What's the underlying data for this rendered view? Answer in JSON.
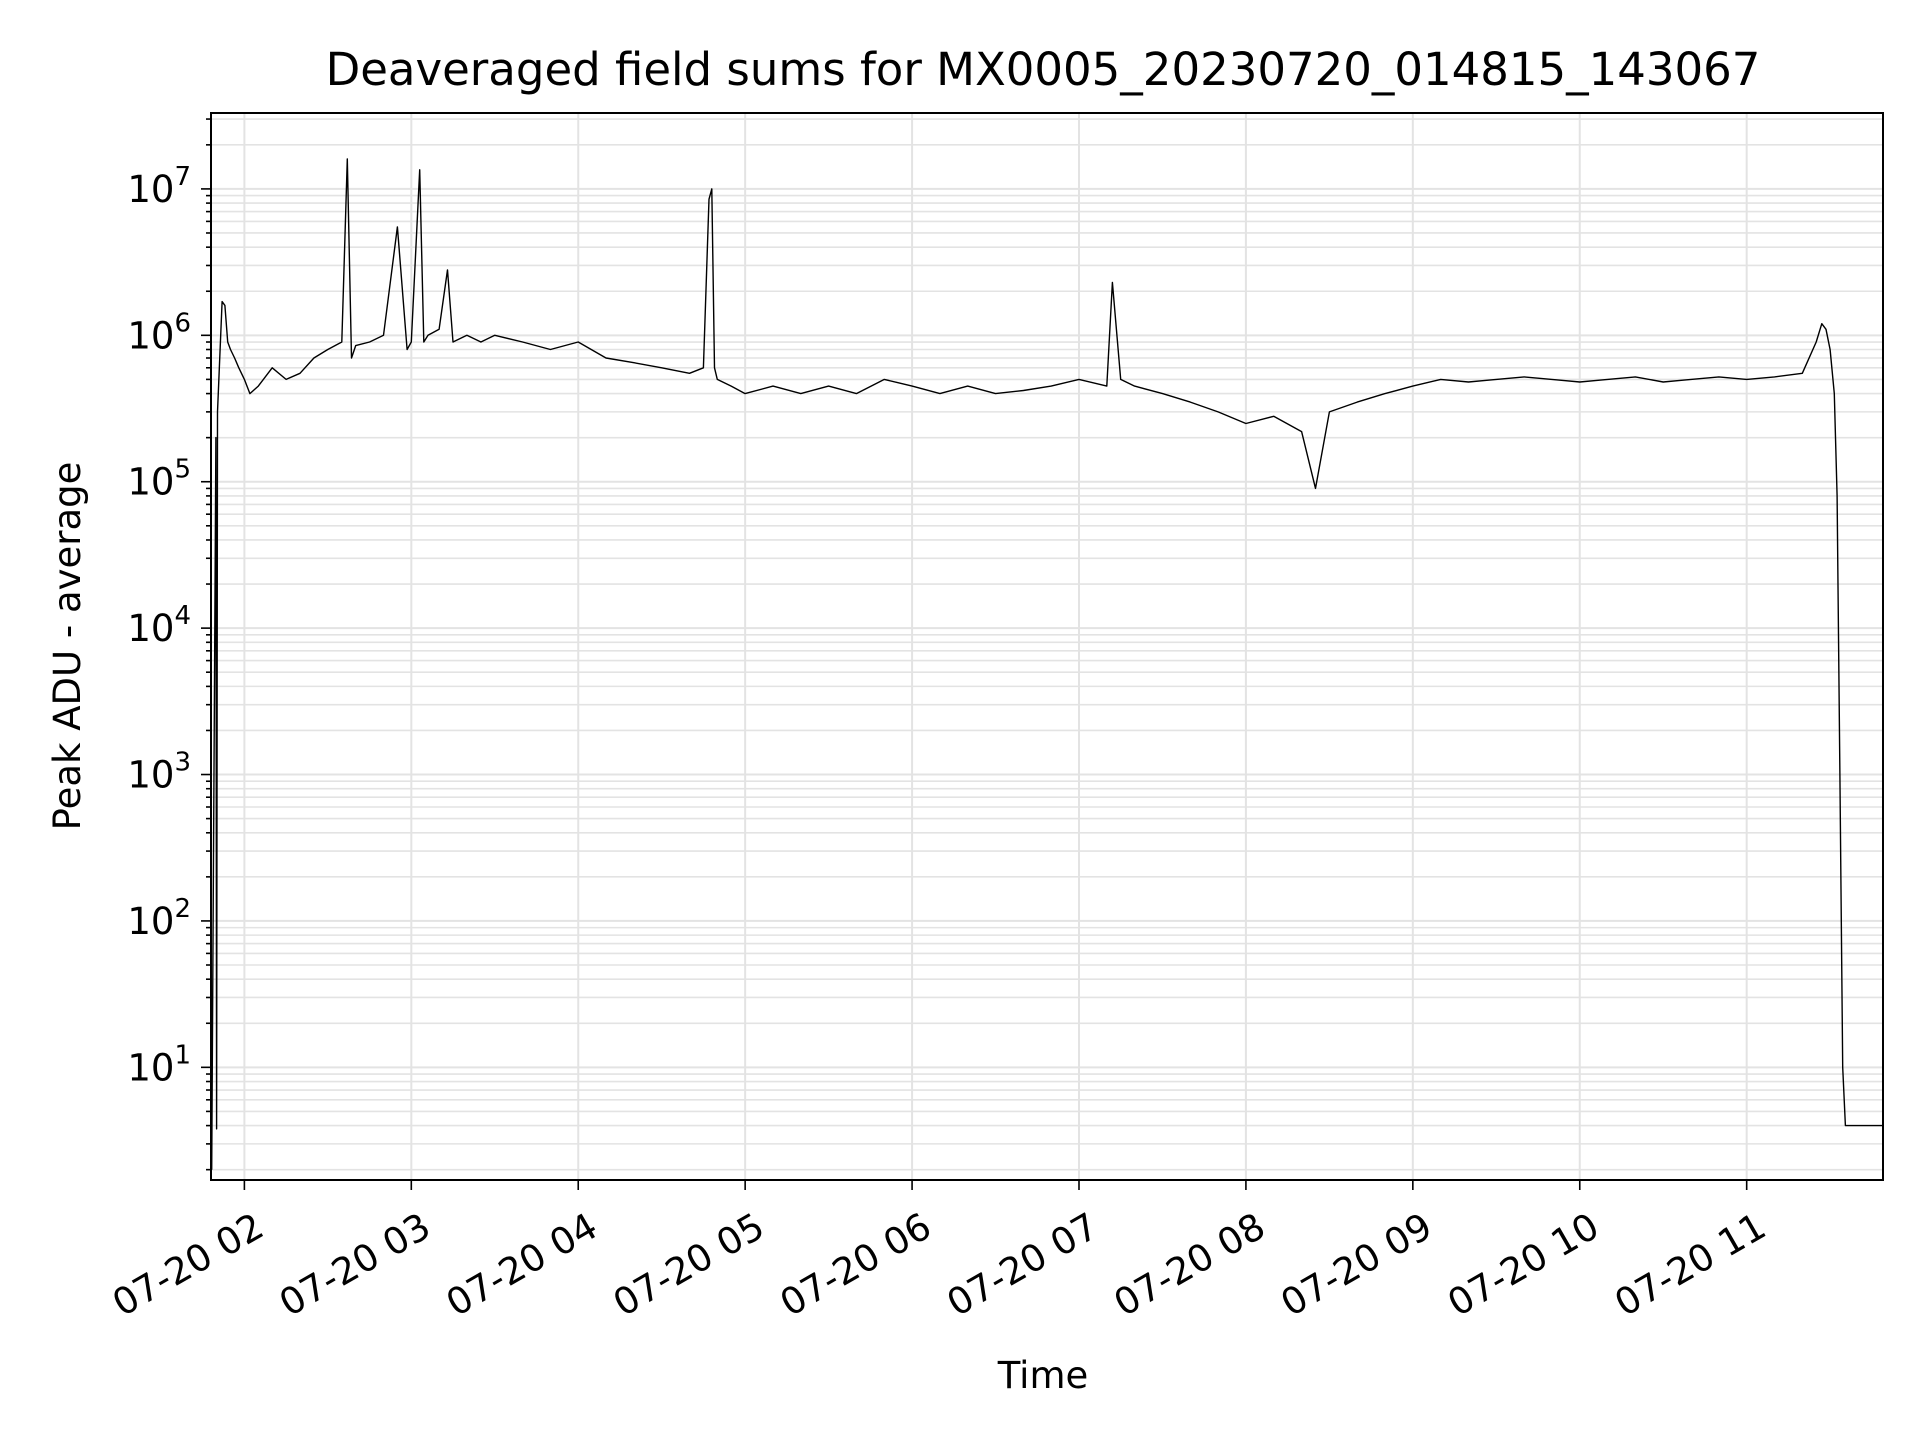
{
  "chart_data": {
    "type": "line",
    "title": "Deaveraged field sums for MX0005_20230720_014815_143067",
    "xlabel": "Time",
    "ylabel": "Peak ADU - average",
    "x_ticks": [
      "07-20 02",
      "07-20 03",
      "07-20 04",
      "07-20 05",
      "07-20 06",
      "07-20 07",
      "07-20 08",
      "07-20 09",
      "07-20 10",
      "07-20 11"
    ],
    "y_ticks": [
      {
        "base": "10",
        "exp": "1",
        "value": 10
      },
      {
        "base": "10",
        "exp": "2",
        "value": 100
      },
      {
        "base": "10",
        "exp": "3",
        "value": 1000
      },
      {
        "base": "10",
        "exp": "4",
        "value": 10000
      },
      {
        "base": "10",
        "exp": "5",
        "value": 100000
      },
      {
        "base": "10",
        "exp": "6",
        "value": 1000000
      },
      {
        "base": "10",
        "exp": "7",
        "value": 10000000
      }
    ],
    "yscale": "log",
    "xlim": [
      "2023-07-20 01:48",
      "2023-07-20 11:49"
    ],
    "ylim": [
      1.7,
      33000000
    ],
    "grid": true,
    "line_color": "#000000",
    "grid_color": "#e3e3e3",
    "series": [
      {
        "x": [
          "2023-07-20 01:48:15",
          "2023-07-20 01:49:45",
          "2023-07-20 01:50:00",
          "2023-07-20 01:50:20",
          "2023-07-20 01:52:00",
          "2023-07-20 01:53:00",
          "2023-07-20 01:54:00",
          "2023-07-20 01:55:00",
          "2023-07-20 01:56:30",
          "2023-07-20 01:58:00",
          "2023-07-20 02:00:00",
          "2023-07-20 02:02:00",
          "2023-07-20 02:05:00",
          "2023-07-20 02:10:00",
          "2023-07-20 02:15:00",
          "2023-07-20 02:20:00",
          "2023-07-20 02:25:00",
          "2023-07-20 02:30:00",
          "2023-07-20 02:35:00",
          "2023-07-20 02:37:00",
          "2023-07-20 02:38:30",
          "2023-07-20 02:40:00",
          "2023-07-20 02:45:00",
          "2023-07-20 02:50:00",
          "2023-07-20 02:55:00",
          "2023-07-20 02:58:30",
          "2023-07-20 03:00:00",
          "2023-07-20 03:03:00",
          "2023-07-20 03:04:30",
          "2023-07-20 03:06:00",
          "2023-07-20 03:10:00",
          "2023-07-20 03:13:00",
          "2023-07-20 03:15:00",
          "2023-07-20 03:20:00",
          "2023-07-20 03:25:00",
          "2023-07-20 03:30:00",
          "2023-07-20 03:40:00",
          "2023-07-20 03:50:00",
          "2023-07-20 04:00:00",
          "2023-07-20 04:10:00",
          "2023-07-20 04:20:00",
          "2023-07-20 04:30:00",
          "2023-07-20 04:40:00",
          "2023-07-20 04:45:00",
          "2023-07-20 04:47:00",
          "2023-07-20 04:48:00",
          "2023-07-20 04:49:00",
          "2023-07-20 04:50:00",
          "2023-07-20 04:55:00",
          "2023-07-20 05:00:00",
          "2023-07-20 05:10:00",
          "2023-07-20 05:20:00",
          "2023-07-20 05:30:00",
          "2023-07-20 05:40:00",
          "2023-07-20 05:50:00",
          "2023-07-20 06:00:00",
          "2023-07-20 06:10:00",
          "2023-07-20 06:20:00",
          "2023-07-20 06:30:00",
          "2023-07-20 06:40:00",
          "2023-07-20 06:50:00",
          "2023-07-20 07:00:00",
          "2023-07-20 07:10:00",
          "2023-07-20 07:12:00",
          "2023-07-20 07:15:00",
          "2023-07-20 07:20:00",
          "2023-07-20 07:30:00",
          "2023-07-20 07:40:00",
          "2023-07-20 07:50:00",
          "2023-07-20 08:00:00",
          "2023-07-20 08:10:00",
          "2023-07-20 08:20:00",
          "2023-07-20 08:25:00",
          "2023-07-20 08:30:00",
          "2023-07-20 08:40:00",
          "2023-07-20 08:50:00",
          "2023-07-20 09:00:00",
          "2023-07-20 09:10:00",
          "2023-07-20 09:20:00",
          "2023-07-20 09:30:00",
          "2023-07-20 09:40:00",
          "2023-07-20 09:50:00",
          "2023-07-20 10:00:00",
          "2023-07-20 10:10:00",
          "2023-07-20 10:20:00",
          "2023-07-20 10:30:00",
          "2023-07-20 10:40:00",
          "2023-07-20 10:50:00",
          "2023-07-20 11:00:00",
          "2023-07-20 11:10:00",
          "2023-07-20 11:20:00",
          "2023-07-20 11:25:00",
          "2023-07-20 11:27:00",
          "2023-07-20 11:28:30",
          "2023-07-20 11:30:00",
          "2023-07-20 11:31:30",
          "2023-07-20 11:32:30",
          "2023-07-20 11:33:30",
          "2023-07-20 11:34:30",
          "2023-07-20 11:35:30",
          "2023-07-20 11:36:00",
          "2023-07-20 11:49:00"
        ],
        "values": [
          2,
          200000,
          3.8,
          300000,
          1700000,
          1600000,
          900000,
          800000,
          700000,
          600000,
          500000,
          400000,
          450000,
          600000,
          500000,
          550000,
          700000,
          800000,
          900000,
          16000000,
          700000,
          850000,
          900000,
          1000000,
          5500000,
          800000,
          900000,
          13500000,
          900000,
          1000000,
          1100000,
          2800000,
          900000,
          1000000,
          900000,
          1000000,
          900000,
          800000,
          900000,
          700000,
          650000,
          600000,
          550000,
          600000,
          8500000,
          10000000,
          600000,
          500000,
          450000,
          400000,
          450000,
          400000,
          450000,
          400000,
          500000,
          450000,
          400000,
          450000,
          400000,
          420000,
          450000,
          500000,
          450000,
          2300000,
          500000,
          450000,
          400000,
          350000,
          300000,
          250000,
          280000,
          220000,
          90000,
          300000,
          350000,
          400000,
          450000,
          500000,
          480000,
          500000,
          520000,
          500000,
          480000,
          500000,
          520000,
          480000,
          500000,
          520000,
          500000,
          520000,
          550000,
          900000,
          1200000,
          1100000,
          800000,
          400000,
          80000,
          1000,
          10,
          4,
          4,
          4
        ]
      }
    ]
  }
}
